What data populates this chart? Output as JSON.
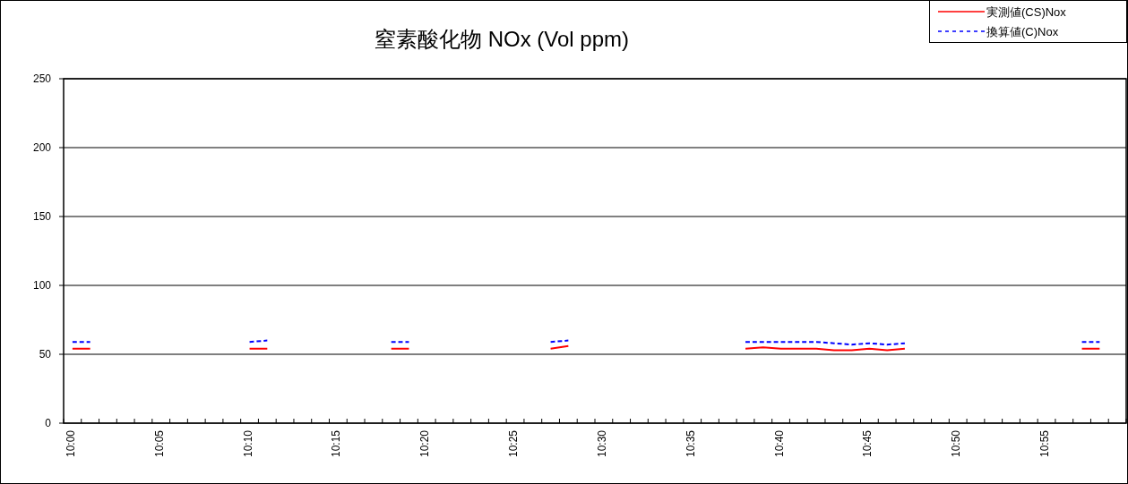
{
  "chart_data": {
    "type": "line",
    "title": "窒素酸化物 NOx (Vol ppm)",
    "categories": [
      "10:00",
      null,
      null,
      null,
      null,
      "10:05",
      null,
      null,
      null,
      null,
      "10:10",
      null,
      null,
      null,
      null,
      "10:15",
      null,
      null,
      null,
      null,
      "10:20",
      null,
      null,
      null,
      null,
      "10:25",
      null,
      null,
      null,
      null,
      "10:30",
      null,
      null,
      null,
      null,
      "10:35",
      null,
      null,
      null,
      null,
      "10:40",
      null,
      null,
      null,
      null,
      "10:45",
      null,
      null,
      null,
      null,
      "10:50",
      null,
      null,
      null,
      null,
      "10:55",
      null,
      null,
      null,
      null
    ],
    "series": [
      {
        "name": "実測値(CS)Nox",
        "color": "#ff0000",
        "line_style": "solid",
        "values": [
          54,
          54,
          null,
          null,
          null,
          null,
          null,
          null,
          null,
          null,
          54,
          54,
          null,
          null,
          null,
          null,
          null,
          null,
          54,
          54,
          null,
          null,
          null,
          null,
          null,
          null,
          null,
          54,
          56,
          null,
          null,
          null,
          null,
          null,
          null,
          null,
          null,
          null,
          54,
          55,
          54,
          54,
          54,
          53,
          53,
          54,
          53,
          54,
          null,
          null,
          null,
          null,
          null,
          null,
          null,
          null,
          null,
          54,
          54,
          null
        ]
      },
      {
        "name": "換算値(C)Nox",
        "color": "#0000ff",
        "line_style": "dashed",
        "values": [
          59,
          59,
          null,
          null,
          null,
          null,
          null,
          null,
          null,
          null,
          59,
          60,
          null,
          null,
          null,
          null,
          null,
          null,
          59,
          59,
          null,
          null,
          null,
          null,
          null,
          null,
          null,
          59,
          60,
          null,
          null,
          null,
          null,
          null,
          null,
          null,
          null,
          null,
          59,
          59,
          59,
          59,
          59,
          58,
          57,
          58,
          57,
          58,
          null,
          null,
          null,
          null,
          null,
          null,
          null,
          null,
          null,
          59,
          59,
          null
        ]
      }
    ],
    "ylim": [
      0,
      250
    ],
    "yticks": [
      0,
      50,
      100,
      150,
      200,
      250
    ],
    "grid": "y",
    "legend": "top right"
  }
}
